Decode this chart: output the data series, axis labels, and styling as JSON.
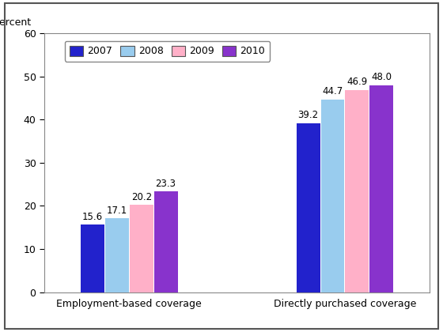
{
  "categories": [
    "Employment-based coverage",
    "Directly purchased coverage"
  ],
  "years": [
    "2007",
    "2008",
    "2009",
    "2010"
  ],
  "values": {
    "Employment-based coverage": [
      15.6,
      17.1,
      20.2,
      23.3
    ],
    "Directly purchased coverage": [
      39.2,
      44.7,
      46.9,
      48.0
    ]
  },
  "colors": [
    "#2222CC",
    "#99CCEE",
    "#FFB0C8",
    "#8833CC"
  ],
  "percent_label": "Percent",
  "ylim": [
    0,
    60
  ],
  "yticks": [
    0,
    10,
    20,
    30,
    40,
    50,
    60
  ],
  "bar_width": 0.17,
  "label_fontsize": 9,
  "tick_fontsize": 9,
  "legend_fontsize": 9,
  "value_fontsize": 8.5,
  "background_color": "#FFFFFF",
  "border_color": "#888888",
  "outer_border_color": "#555555"
}
